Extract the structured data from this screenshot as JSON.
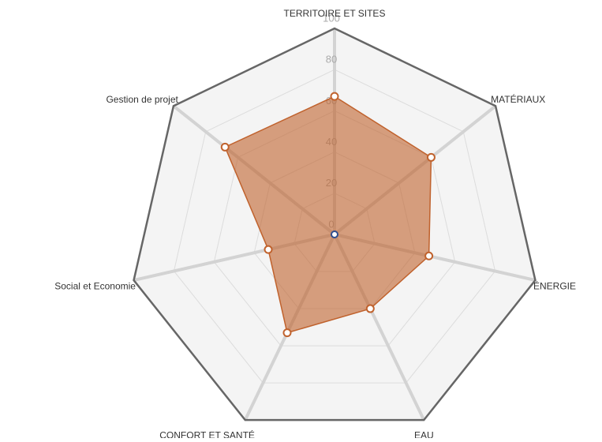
{
  "chart_data": {
    "type": "radar",
    "categories": [
      "TERRITOIRE ET SITES",
      "MATÉRIAUX",
      "ÉNERGIE",
      "EAU",
      "CONFORT ET SANTÉ",
      "Social et Economie",
      "Gestion de projet"
    ],
    "values": [
      67,
      60,
      47,
      40,
      53,
      33,
      68
    ],
    "color": "#c0622d",
    "ylim": [
      0,
      100
    ],
    "yticks": [
      0,
      20,
      40,
      60,
      80,
      100
    ],
    "grid": true
  }
}
